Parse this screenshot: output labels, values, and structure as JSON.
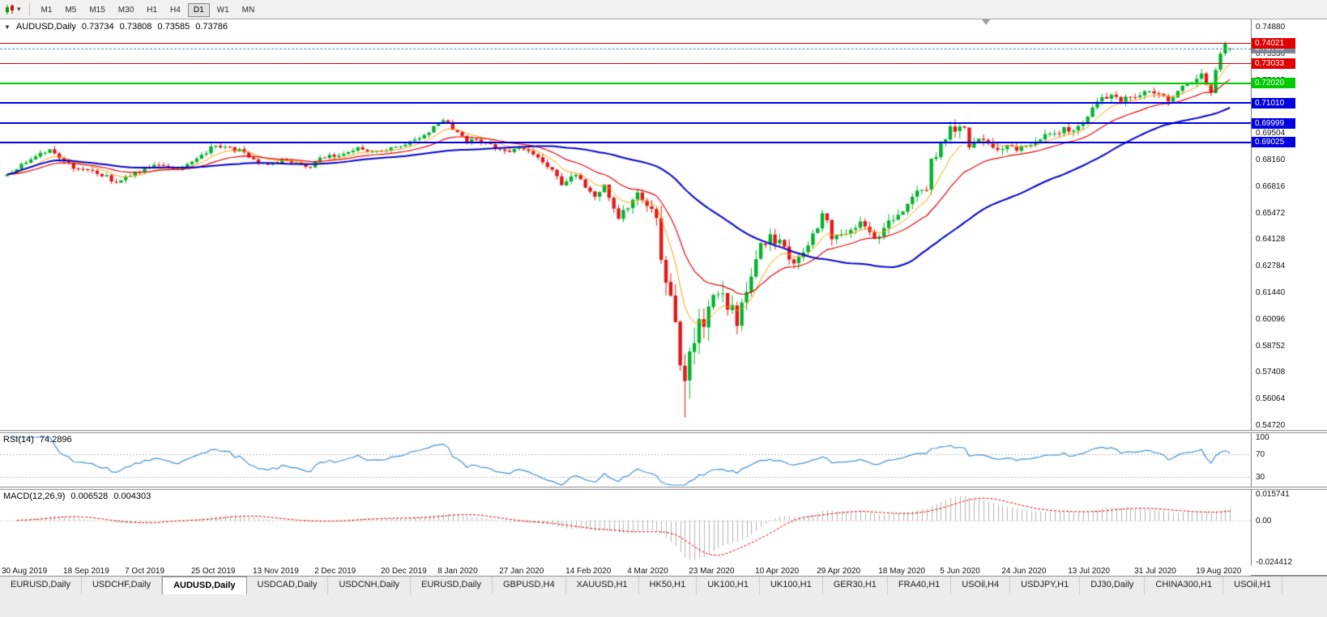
{
  "toolbar": {
    "chart_icon": "candlestick-chart-icon",
    "dropdown_glyph": "▾",
    "timeframes": [
      "M1",
      "M5",
      "M15",
      "M30",
      "H1",
      "H4",
      "D1",
      "W1",
      "MN"
    ],
    "active_timeframe": "D1"
  },
  "chart": {
    "collapse_icon": "▼",
    "symbol_period": "AUDUSD,Daily",
    "ohlc": {
      "open": "0.73734",
      "high": "0.73808",
      "low": "0.73585",
      "close": "0.73786"
    }
  },
  "rsi_panel": {
    "label": "RSI(14)",
    "value": "74.2896",
    "axis_labels": [
      "100",
      "70",
      "30"
    ],
    "level_lines": [
      70,
      30
    ]
  },
  "macd_panel": {
    "label": "MACD(12,26,9)",
    "value_main": "0.006528",
    "value_signal": "0.004303",
    "axis_labels": [
      "0.015741",
      "0.00",
      "-0.024412"
    ]
  },
  "price_axis": {
    "labels": [
      "0.74880",
      "0.73536",
      "0.72192",
      "0.70848",
      "0.69504",
      "0.68160",
      "0.66816",
      "0.65472",
      "0.64128",
      "0.62784",
      "0.61440",
      "0.60096",
      "0.58752",
      "0.57408",
      "0.56064",
      "0.54720"
    ]
  },
  "date_axis": {
    "labels": [
      "30 Aug 2019",
      "18 Sep 2019",
      "7 Oct 2019",
      "25 Oct 2019",
      "13 Nov 2019",
      "2 Dec 2019",
      "20 Dec 2019",
      "8 Jan 2020",
      "27 Jan 2020",
      "14 Feb 2020",
      "4 Mar 2020",
      "23 Mar 2020",
      "10 Apr 2020",
      "29 Apr 2020",
      "18 May 2020",
      "5 Jun 2020",
      "24 Jun 2020",
      "13 Jul 2020",
      "31 Jul 2020",
      "19 Aug 2020"
    ],
    "bars": [
      0,
      13,
      26,
      40,
      53,
      66,
      80,
      92,
      105,
      119,
      132,
      145,
      159,
      172,
      185,
      198,
      211,
      225,
      239,
      252
    ]
  },
  "current_price": {
    "label": "0.73786",
    "price": 0.73786,
    "color": "#778899"
  },
  "tabs": {
    "items": [
      "EURUSD,Daily",
      "USDCHF,Daily",
      "AUDUSD,Daily",
      "USDCAD,Daily",
      "USDCNH,Daily",
      "EURUSD,Daily",
      "GBPUSD,H4",
      "XAUUSD,H1",
      "HK50,H1",
      "UK100,H1",
      "UK100,H1",
      "GER30,H1",
      "FRA40,H1",
      "USOil,H4",
      "USDJPY,H1",
      "DJ30,Daily",
      "CHINA300,H1",
      "USOil,H1"
    ],
    "active_index": 2
  },
  "colors": {
    "up": "#00b22c",
    "down": "#e21717",
    "rsi_line": "#4090cf",
    "rsi_levels": "#b8b8b8",
    "macd_hist": "#b3b3b3",
    "macd_signal": "#dd0000",
    "macd_zero": "#aaaaaa",
    "bid_line": "#778899"
  },
  "chart_data": {
    "type": "candlestick",
    "symbol": "AUDUSD",
    "period": "Daily",
    "bars_count": 259,
    "price_axis_range": [
      0.5472,
      0.7488
    ],
    "hlines": [
      {
        "label": "0.74021",
        "price": 0.74021,
        "color": "#e00000",
        "width": 1
      },
      {
        "label": "0.73033",
        "price": 0.73033,
        "color": "#e00000",
        "width": 1
      },
      {
        "label": "0.72020",
        "price": 0.7202,
        "color": "#00ca00",
        "width": 2
      },
      {
        "label": "0.71010",
        "price": 0.7101,
        "color": "#0000e0",
        "width": 2
      },
      {
        "label": "0.69999",
        "price": 0.69999,
        "color": "#0000e0",
        "width": 2
      },
      {
        "label": "0.69025",
        "price": 0.69025,
        "color": "#0000e0",
        "width": 2
      }
    ],
    "moving_averages": [
      {
        "method": "EMA",
        "period": 8,
        "color": "#ff9e00",
        "width": 1
      },
      {
        "method": "EMA",
        "period": 20,
        "color": "#e60000",
        "width": 1.2
      },
      {
        "method": "SMA",
        "period": 50,
        "color": "#0000cc",
        "width": 2
      }
    ],
    "indicators": [
      {
        "name": "RSI",
        "period": 14,
        "current": 74.2896
      },
      {
        "name": "MACD",
        "fast_ema": 12,
        "slow_ema": 26,
        "signal_sma": 9,
        "current_main": 0.006528,
        "current_signal": 0.004303
      }
    ],
    "close_anchors": [
      [
        0,
        0.6733
      ],
      [
        3,
        0.679
      ],
      [
        9,
        0.6866
      ],
      [
        14,
        0.6775
      ],
      [
        20,
        0.674
      ],
      [
        23,
        0.67
      ],
      [
        26,
        0.6738
      ],
      [
        31,
        0.6788
      ],
      [
        36,
        0.677
      ],
      [
        40,
        0.6822
      ],
      [
        44,
        0.689
      ],
      [
        49,
        0.686
      ],
      [
        54,
        0.679
      ],
      [
        59,
        0.681
      ],
      [
        64,
        0.6774
      ],
      [
        66,
        0.682
      ],
      [
        71,
        0.6845
      ],
      [
        74,
        0.6884
      ],
      [
        76,
        0.6852
      ],
      [
        80,
        0.686
      ],
      [
        85,
        0.6905
      ],
      [
        89,
        0.6955
      ],
      [
        92,
        0.7021
      ],
      [
        95,
        0.695
      ],
      [
        97,
        0.6905
      ],
      [
        99,
        0.692
      ],
      [
        103,
        0.6882
      ],
      [
        106,
        0.685
      ],
      [
        109,
        0.6878
      ],
      [
        112,
        0.683
      ],
      [
        115,
        0.677
      ],
      [
        117,
        0.6691
      ],
      [
        120,
        0.6732
      ],
      [
        122,
        0.6674
      ],
      [
        124,
        0.6627
      ],
      [
        126,
        0.67
      ],
      [
        129,
        0.6515
      ],
      [
        130,
        0.6541
      ],
      [
        132,
        0.6628
      ],
      [
        134,
        0.6633
      ],
      [
        135,
        0.6583
      ],
      [
        137,
        0.649
      ],
      [
        138,
        0.6287
      ],
      [
        139,
        0.6183
      ],
      [
        140,
        0.6119
      ],
      [
        141,
        0.6009
      ],
      [
        142,
        0.5798
      ],
      [
        143,
        0.5741
      ],
      [
        144,
        0.58
      ],
      [
        145,
        0.5863
      ],
      [
        146,
        0.5965
      ],
      [
        147,
        0.5957
      ],
      [
        148,
        0.6066
      ],
      [
        149,
        0.6166
      ],
      [
        150,
        0.6096
      ],
      [
        151,
        0.6135
      ],
      [
        153,
        0.605
      ],
      [
        154,
        0.5998
      ],
      [
        156,
        0.6167
      ],
      [
        158,
        0.6345
      ],
      [
        161,
        0.6436
      ],
      [
        164,
        0.6365
      ],
      [
        166,
        0.629
      ],
      [
        169,
        0.637
      ],
      [
        172,
        0.655
      ],
      [
        173,
        0.6511
      ],
      [
        174,
        0.6418
      ],
      [
        177,
        0.6445
      ],
      [
        180,
        0.6485
      ],
      [
        184,
        0.6415
      ],
      [
        187,
        0.653
      ],
      [
        189,
        0.6535
      ],
      [
        192,
        0.665
      ],
      [
        194,
        0.6665
      ],
      [
        195,
        0.68
      ],
      [
        197,
        0.689
      ],
      [
        199,
        0.6968
      ],
      [
        202,
        0.7
      ],
      [
        203,
        0.6852
      ],
      [
        205,
        0.692
      ],
      [
        207,
        0.688
      ],
      [
        209,
        0.6855
      ],
      [
        211,
        0.6905
      ],
      [
        213,
        0.6864
      ],
      [
        216,
        0.6903
      ],
      [
        218,
        0.692
      ],
      [
        220,
        0.695
      ],
      [
        223,
        0.6965
      ],
      [
        225,
        0.696
      ],
      [
        227,
        0.701
      ],
      [
        231,
        0.713
      ],
      [
        232,
        0.7139
      ],
      [
        235,
        0.7113
      ],
      [
        239,
        0.7143
      ],
      [
        242,
        0.7157
      ],
      [
        245,
        0.711
      ],
      [
        247,
        0.7169
      ],
      [
        250,
        0.722
      ],
      [
        252,
        0.7238
      ],
      [
        254,
        0.716
      ],
      [
        256,
        0.7365
      ],
      [
        257,
        0.739
      ],
      [
        258,
        0.73786
      ]
    ],
    "volatility_anchors": [
      [
        0,
        0.003
      ],
      [
        90,
        0.0028
      ],
      [
        118,
        0.0035
      ],
      [
        130,
        0.0055
      ],
      [
        137,
        0.011
      ],
      [
        141,
        0.016
      ],
      [
        143,
        0.019
      ],
      [
        147,
        0.014
      ],
      [
        152,
        0.011
      ],
      [
        158,
        0.0095
      ],
      [
        166,
        0.0075
      ],
      [
        180,
        0.0058
      ],
      [
        196,
        0.006
      ],
      [
        203,
        0.0075
      ],
      [
        212,
        0.0048
      ],
      [
        230,
        0.0045
      ],
      [
        258,
        0.0042
      ]
    ],
    "special_bars": {
      "143": {
        "low": 0.551
      },
      "257": {
        "high": 0.74135
      },
      "258": {
        "open": 0.73734,
        "high": 0.73808,
        "low": 0.73585,
        "close": 0.73786
      }
    }
  }
}
